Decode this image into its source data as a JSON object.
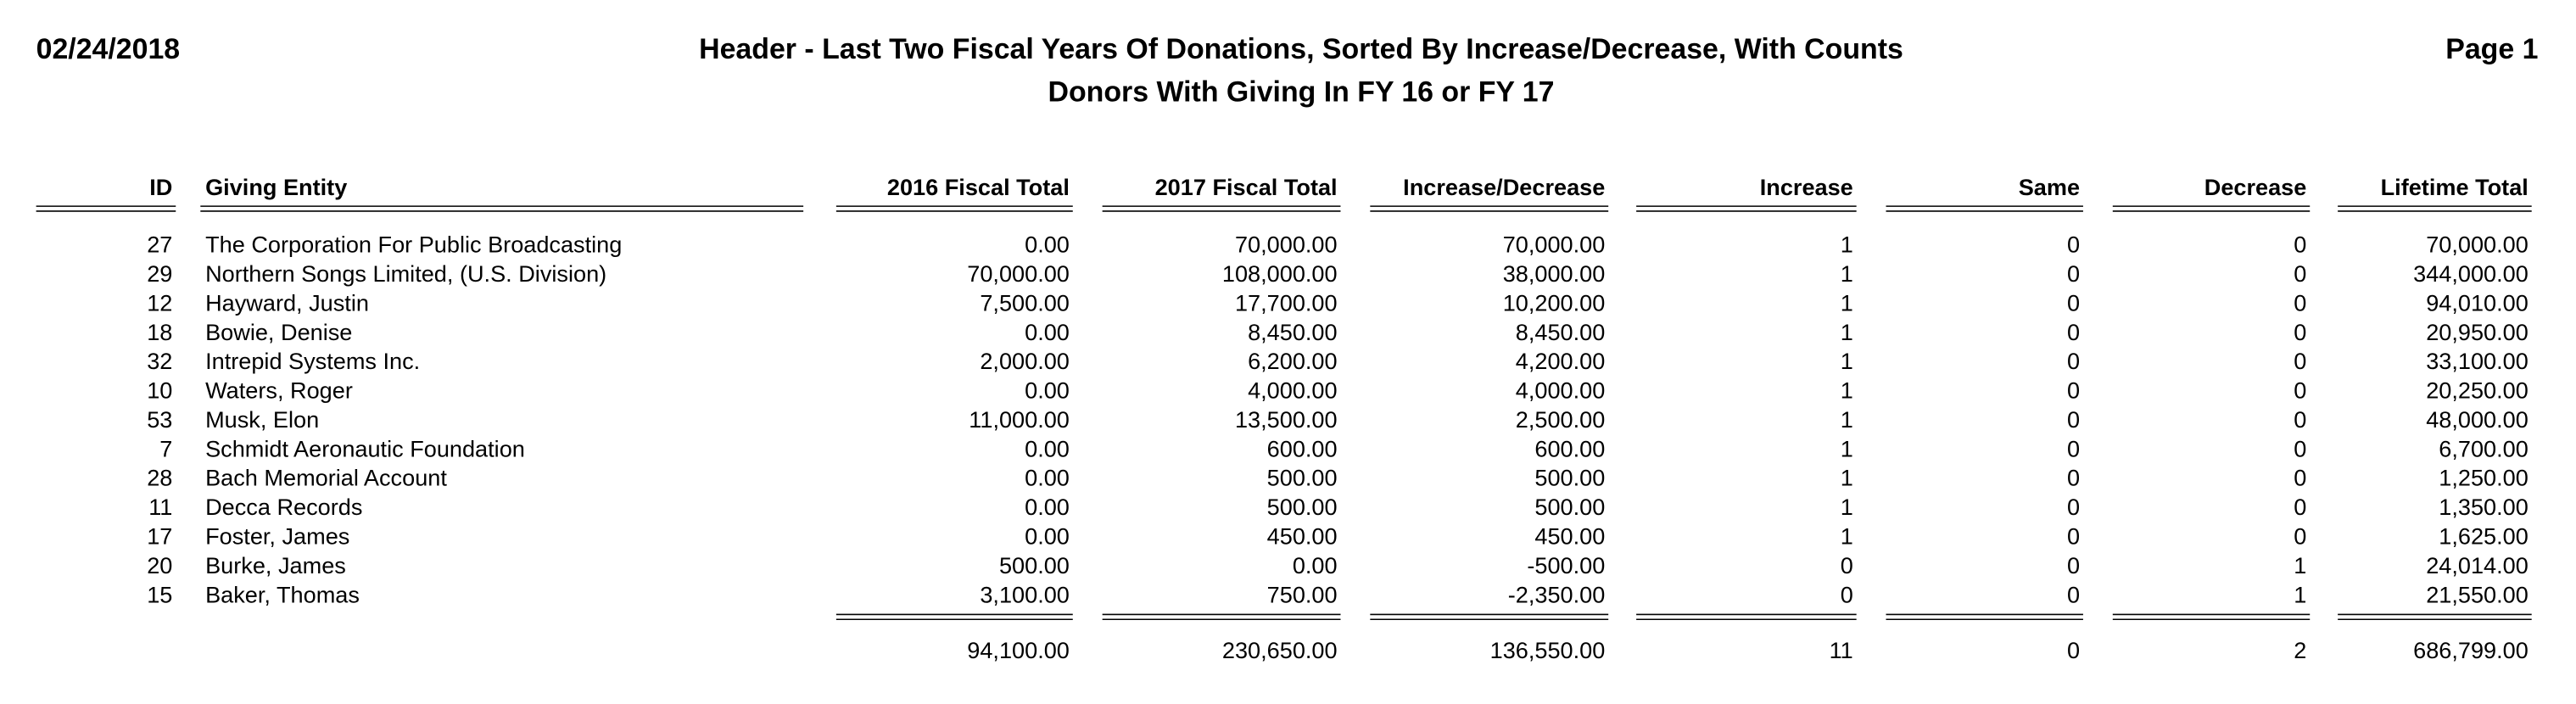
{
  "header": {
    "date": "02/24/2018",
    "title": "Header - Last Two Fiscal Years Of Donations, Sorted By Increase/Decrease, With Counts",
    "subtitle": "Donors With Giving In FY 16 or FY 17",
    "page": "Page 1"
  },
  "table": {
    "columns": [
      "ID",
      "Giving Entity",
      "2016 Fiscal Total",
      "2017 Fiscal Total",
      "Increase/Decrease",
      "Increase",
      "Same",
      "Decrease",
      "Lifetime Total"
    ],
    "rows": [
      [
        "27",
        "The Corporation For Public Broadcasting",
        "0.00",
        "70,000.00",
        "70,000.00",
        "1",
        "0",
        "0",
        "70,000.00"
      ],
      [
        "29",
        "Northern Songs Limited, (U.S. Division)",
        "70,000.00",
        "108,000.00",
        "38,000.00",
        "1",
        "0",
        "0",
        "344,000.00"
      ],
      [
        "12",
        "Hayward, Justin",
        "7,500.00",
        "17,700.00",
        "10,200.00",
        "1",
        "0",
        "0",
        "94,010.00"
      ],
      [
        "18",
        "Bowie, Denise",
        "0.00",
        "8,450.00",
        "8,450.00",
        "1",
        "0",
        "0",
        "20,950.00"
      ],
      [
        "32",
        "Intrepid Systems Inc.",
        "2,000.00",
        "6,200.00",
        "4,200.00",
        "1",
        "0",
        "0",
        "33,100.00"
      ],
      [
        "10",
        "Waters, Roger",
        "0.00",
        "4,000.00",
        "4,000.00",
        "1",
        "0",
        "0",
        "20,250.00"
      ],
      [
        "53",
        "Musk, Elon",
        "11,000.00",
        "13,500.00",
        "2,500.00",
        "1",
        "0",
        "0",
        "48,000.00"
      ],
      [
        "7",
        "Schmidt Aeronautic Foundation",
        "0.00",
        "600.00",
        "600.00",
        "1",
        "0",
        "0",
        "6,700.00"
      ],
      [
        "28",
        "Bach Memorial Account",
        "0.00",
        "500.00",
        "500.00",
        "1",
        "0",
        "0",
        "1,250.00"
      ],
      [
        "11",
        "Decca Records",
        "0.00",
        "500.00",
        "500.00",
        "1",
        "0",
        "0",
        "1,350.00"
      ],
      [
        "17",
        "Foster, James",
        "0.00",
        "450.00",
        "450.00",
        "1",
        "0",
        "0",
        "1,625.00"
      ],
      [
        "20",
        "Burke, James",
        "500.00",
        "0.00",
        "-500.00",
        "0",
        "0",
        "1",
        "24,014.00"
      ],
      [
        "15",
        "Baker, Thomas",
        "3,100.00",
        "750.00",
        "-2,350.00",
        "0",
        "0",
        "1",
        "21,550.00"
      ]
    ],
    "totals": [
      "94,100.00",
      "230,650.00",
      "136,550.00",
      "11",
      "0",
      "2",
      "686,799.00"
    ]
  }
}
